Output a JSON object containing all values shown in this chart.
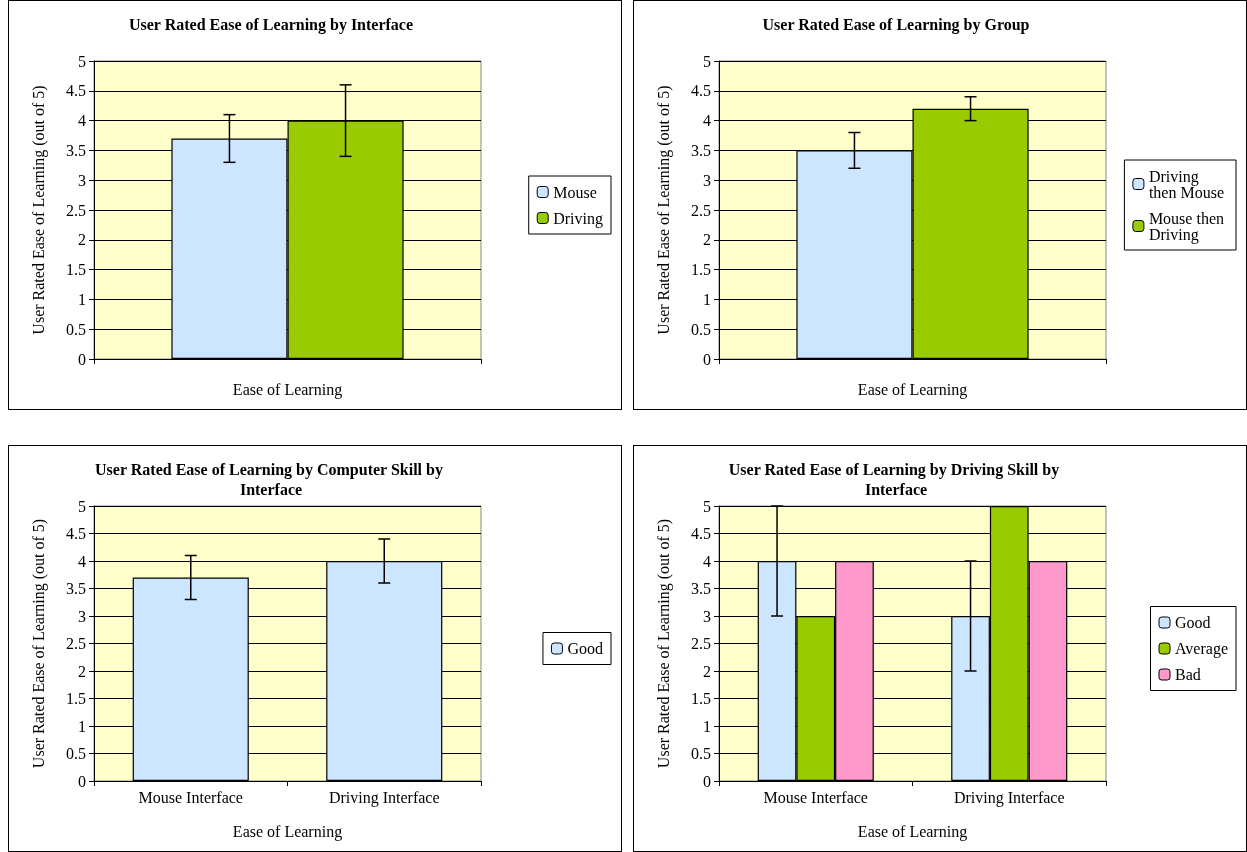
{
  "chart_data": [
    {
      "type": "bar",
      "title": "User Rated Ease of Learning by Interface",
      "xlabel": "Ease of Learning",
      "ylabel": "User Rated Ease of Learning (out of 5)",
      "categories": [
        null
      ],
      "series": [
        {
          "name": "Mouse",
          "color": "#cce6ff",
          "values": [
            3.7
          ],
          "errors": [
            0.4
          ]
        },
        {
          "name": "Driving",
          "color": "#99cc00",
          "values": [
            4.0
          ],
          "errors": [
            0.6
          ]
        }
      ],
      "ylim": [
        0,
        5
      ],
      "yticks": [
        0,
        0.5,
        1,
        1.5,
        2,
        2.5,
        3,
        3.5,
        4,
        4.5,
        5
      ],
      "grid": "y",
      "legend": "right"
    },
    {
      "type": "bar",
      "title": "User Rated Ease of Learning by Group",
      "xlabel": "Ease of Learning",
      "ylabel": "User Rated Ease of Learning (out of 5)",
      "categories": [
        null
      ],
      "series": [
        {
          "name": "Driving then Mouse",
          "color": "#cce6ff",
          "values": [
            3.5
          ],
          "errors": [
            0.3
          ]
        },
        {
          "name": "Mouse then Driving",
          "color": "#99cc00",
          "values": [
            4.2
          ],
          "errors": [
            0.2
          ]
        }
      ],
      "ylim": [
        0,
        5
      ],
      "yticks": [
        0,
        0.5,
        1,
        1.5,
        2,
        2.5,
        3,
        3.5,
        4,
        4.5,
        5
      ],
      "grid": "y",
      "legend": "right"
    },
    {
      "type": "bar",
      "title": "User Rated Ease of Learning by Computer Skill by Interface",
      "xlabel": "Ease of Learning",
      "ylabel": "User Rated Ease of Learning (out of 5)",
      "categories": [
        "Mouse Interface",
        "Driving Interface"
      ],
      "series": [
        {
          "name": "Good",
          "color": "#cce6ff",
          "values": [
            3.7,
            4.0
          ],
          "errors": [
            0.4,
            0.4
          ]
        }
      ],
      "ylim": [
        0,
        5
      ],
      "yticks": [
        0,
        0.5,
        1,
        1.5,
        2,
        2.5,
        3,
        3.5,
        4,
        4.5,
        5
      ],
      "grid": "y",
      "legend": "right"
    },
    {
      "type": "bar",
      "title": "User Rated Ease of Learning by Driving Skill by Interface",
      "xlabel": "Ease of Learning",
      "ylabel": "User Rated Ease of Learning (out of 5)",
      "categories": [
        "Mouse Interface",
        "Driving Interface"
      ],
      "series": [
        {
          "name": "Good",
          "color": "#cce6ff",
          "values": [
            4,
            3
          ],
          "errors": [
            1,
            1
          ]
        },
        {
          "name": "Average",
          "color": "#99cc00",
          "values": [
            3,
            5
          ]
        },
        {
          "name": "Bad",
          "color": "#ff99cc",
          "values": [
            4,
            4
          ]
        }
      ],
      "ylim": [
        0,
        5
      ],
      "yticks": [
        0,
        0.5,
        1,
        1.5,
        2,
        2.5,
        3,
        3.5,
        4,
        4.5,
        5
      ],
      "grid": "y",
      "legend": "right"
    }
  ]
}
